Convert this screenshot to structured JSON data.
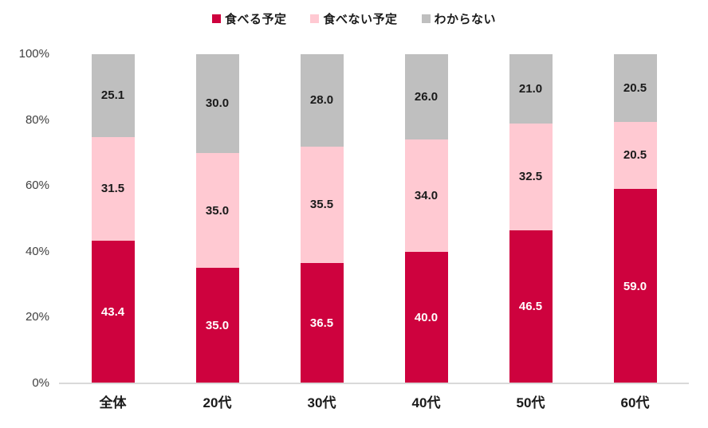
{
  "chart_data": {
    "type": "bar",
    "subtype": "stacked-100-percent",
    "title": "",
    "categories": [
      "全体",
      "20代",
      "30代",
      "40代",
      "50代",
      "60代"
    ],
    "series": [
      {
        "name": "食べる予定",
        "color": "#ce023e",
        "label_color": "#ffffff",
        "values": [
          43.4,
          35.0,
          36.5,
          40.0,
          46.5,
          59.0
        ],
        "labels": [
          "43.4",
          "35.0",
          "36.5",
          "40.0",
          "46.5",
          "59.0"
        ]
      },
      {
        "name": "食べない予定",
        "color": "#ffc9d2",
        "label_color": "#1a1a1a",
        "values": [
          31.5,
          35.0,
          35.5,
          34.0,
          32.5,
          20.5
        ],
        "labels": [
          "31.5",
          "35.0",
          "35.5",
          "34.0",
          "32.5",
          "20.5"
        ]
      },
      {
        "name": "わからない",
        "color": "#bfbfbf",
        "label_color": "#1a1a1a",
        "values": [
          25.1,
          30.0,
          28.0,
          26.0,
          21.0,
          20.5
        ],
        "labels": [
          "25.1",
          "30.0",
          "28.0",
          "26.0",
          "21.0",
          "20.5"
        ]
      }
    ],
    "y_axis": {
      "min": 0,
      "max": 100,
      "tick_values": [
        0,
        20,
        40,
        60,
        80,
        100
      ],
      "ticks": [
        "0%",
        "20%",
        "40%",
        "60%",
        "80%",
        "100%"
      ]
    },
    "legend_position": "top",
    "grid": false,
    "axis_line_color": "#d9d9d9",
    "tick_label_color": "#404040",
    "category_label_color": "#1a1a1a",
    "background": "#ffffff"
  }
}
